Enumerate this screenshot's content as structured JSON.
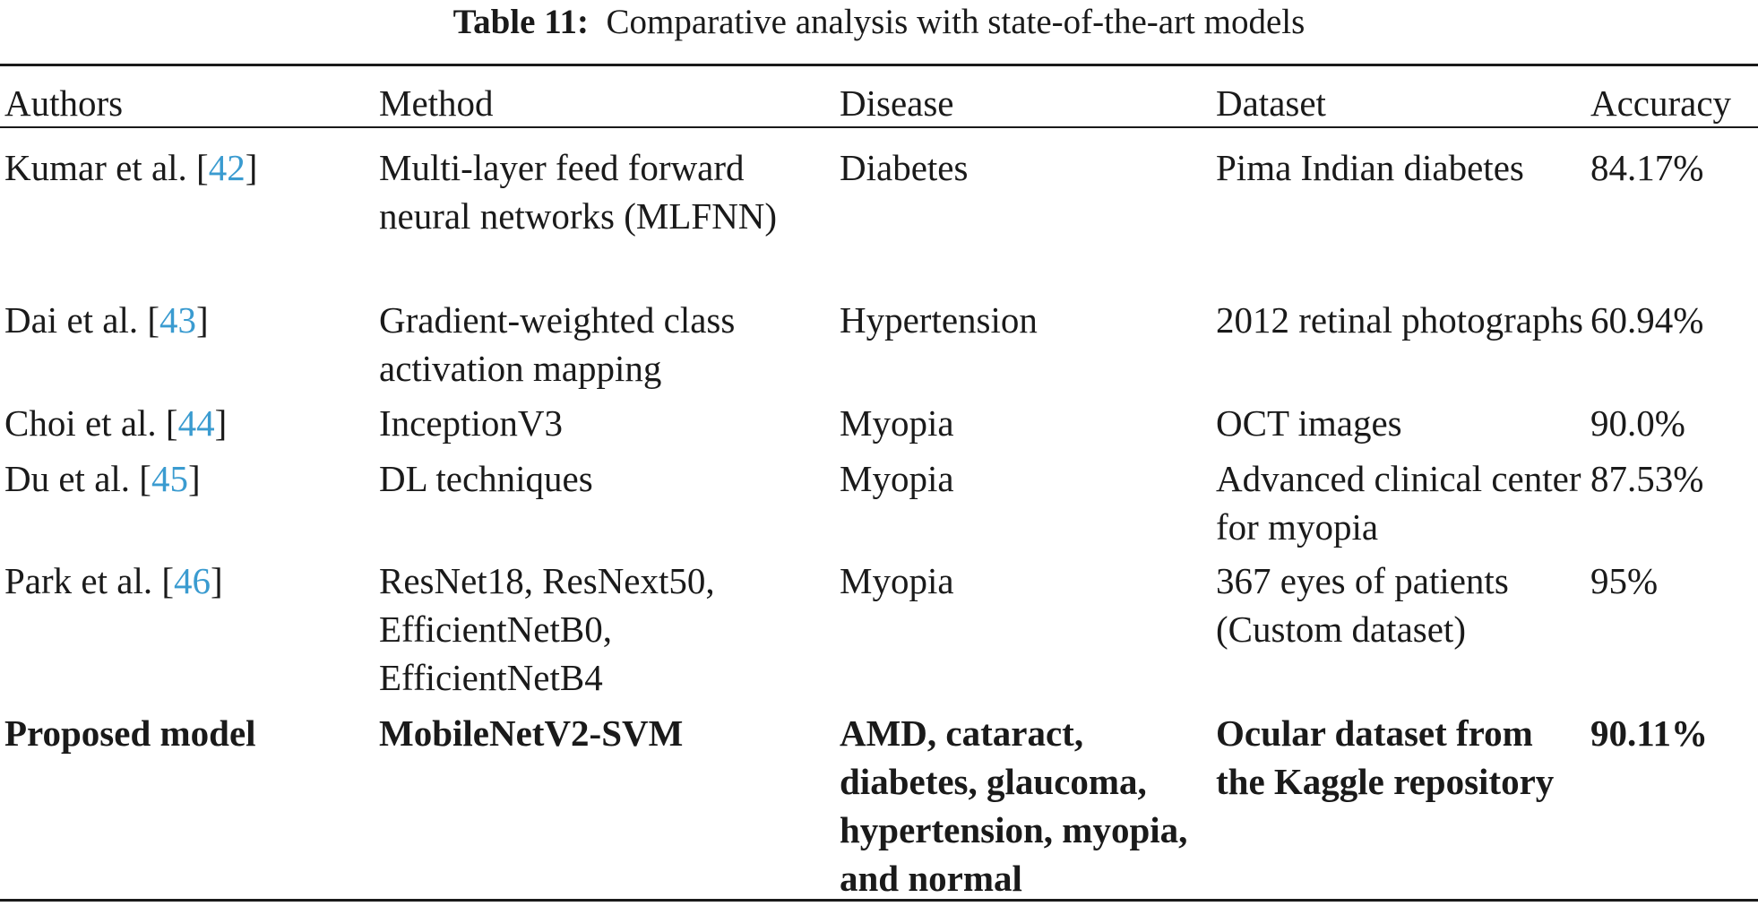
{
  "caption": {
    "label": "Table 11:",
    "text": "Comparative analysis with state-of-the-art models"
  },
  "table": {
    "headers": [
      "Authors",
      "Method",
      "Disease",
      "Dataset",
      "Accuracy"
    ],
    "rows": [
      {
        "author": "Kumar et al. [",
        "ref": "42",
        "close": "]",
        "method": "Multi-layer feed forward neural networks (MLFNN)",
        "disease": "Diabetes",
        "dataset": "Pima Indian diabetes",
        "accuracy": "84.17%"
      },
      {
        "author": "Dai et al. [",
        "ref": "43",
        "close": "]",
        "method": "Gradient-weighted class activation mapping",
        "disease": "Hypertension",
        "dataset": "2012 retinal photographs",
        "accuracy": "60.94%"
      },
      {
        "author": "Choi et al. [",
        "ref": "44",
        "close": "]",
        "method": "InceptionV3",
        "disease": "Myopia",
        "dataset": "OCT images",
        "accuracy": "90.0%"
      },
      {
        "author": "Du et al. [",
        "ref": "45",
        "close": "]",
        "method": "DL techniques",
        "disease": "Myopia",
        "dataset": "Advanced clinical center for myopia",
        "accuracy": "87.53%"
      },
      {
        "author": "Park et al. [",
        "ref": "46",
        "close": "]",
        "method": "ResNet18, ResNext50, EfficientNetB0, EfficientNetB4",
        "disease": "Myopia",
        "dataset": "367 eyes of patients (Custom dataset)",
        "accuracy": "95%"
      },
      {
        "author": "Proposed model",
        "method": "MobileNetV2-SVM",
        "disease": "AMD, cataract, diabetes, glaucoma, hypertension, myopia, and normal",
        "dataset": "Ocular dataset from the Kaggle repository",
        "accuracy": "90.11%"
      }
    ]
  },
  "colors": {
    "text": "#1a1a1a",
    "reference_link": "#3a9bd0"
  }
}
